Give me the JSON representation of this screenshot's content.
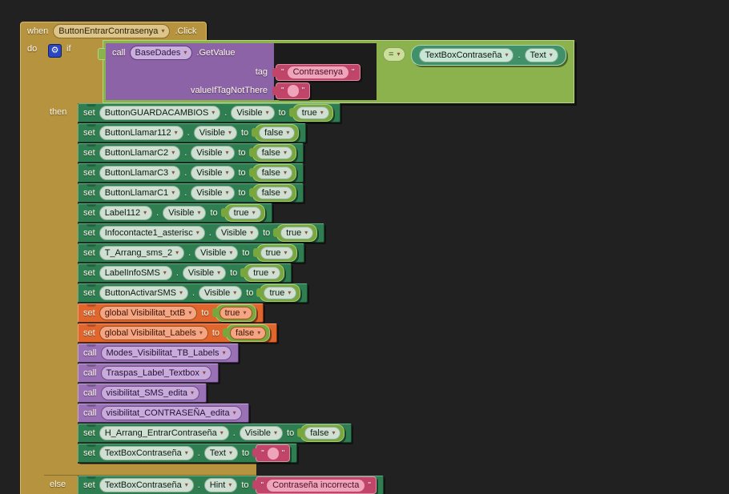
{
  "colors": {
    "canvas_background": "#212121",
    "control_gold": "#b6933e",
    "logic_green": "#8bb24c",
    "boolean_green": "#79a73e",
    "component_set_green": "#2f7e51",
    "component_get_teal": "#40906a",
    "text_pink": "#c14569",
    "variable_orange": "#e1662e",
    "procedure_purple": "#9b71b6",
    "call_method_purple": "#8d63a8",
    "mutator_blue": "#2a46c0"
  },
  "icons": {
    "dropdown_caret": "▾",
    "mutator_gear": "⚙"
  },
  "keywords": {
    "when": "when",
    "do": "do",
    "if": "if",
    "then": "then",
    "else": "else",
    "set": "set",
    "to": "to",
    "call": "call",
    "dot": ".",
    "quote": "\""
  },
  "when_block": {
    "component": "ButtonEntrarContrasenya",
    "event": ".Click"
  },
  "condition": {
    "operator": "=",
    "call_block": {
      "component": "BaseDades",
      "method": ".GetValue",
      "params": [
        {
          "label": "tag",
          "value": "Contrasenya",
          "value_type": "text"
        },
        {
          "label": "valueIfTagNotThere",
          "value": "",
          "value_type": "text-empty"
        }
      ]
    },
    "right_operand": {
      "component": "TextBoxContraseña",
      "property": "Text"
    }
  },
  "then_statements": [
    {
      "type": "set-property",
      "component": "ButtonGUARDACAMBIOS",
      "property": "Visible",
      "value_type": "bool",
      "value": "true"
    },
    {
      "type": "set-property",
      "component": "ButtonLlamar112",
      "property": "Visible",
      "value_type": "bool",
      "value": "false"
    },
    {
      "type": "set-property",
      "component": "ButtonLlamarC2",
      "property": "Visible",
      "value_type": "bool",
      "value": "false"
    },
    {
      "type": "set-property",
      "component": "ButtonLlamarC3",
      "property": "Visible",
      "value_type": "bool",
      "value": "false"
    },
    {
      "type": "set-property",
      "component": "ButtonLlamarC1",
      "property": "Visible",
      "value_type": "bool",
      "value": "false"
    },
    {
      "type": "set-property",
      "component": "Label112",
      "property": "Visible",
      "value_type": "bool",
      "value": "true"
    },
    {
      "type": "set-property",
      "component": "Infocontacte1_asterisc",
      "property": "Visible",
      "value_type": "bool",
      "value": "true"
    },
    {
      "type": "set-property",
      "component": "T_Arrang_sms_2",
      "property": "Visible",
      "value_type": "bool",
      "value": "true"
    },
    {
      "type": "set-property",
      "component": "LabelInfoSMS",
      "property": "Visible",
      "value_type": "bool",
      "value": "true"
    },
    {
      "type": "set-property",
      "component": "ButtonActivarSMS",
      "property": "Visible",
      "value_type": "bool",
      "value": "true"
    },
    {
      "type": "set-variable",
      "variable": "global Visibilitat_txtB",
      "value_type": "bool",
      "value": "true"
    },
    {
      "type": "set-variable",
      "variable": "global Visibilitat_Labels",
      "value_type": "bool",
      "value": "false"
    },
    {
      "type": "call-procedure",
      "name": "Modes_Visibilitat_TB_Labels"
    },
    {
      "type": "call-procedure",
      "name": "Traspas_Label_Textbox"
    },
    {
      "type": "call-procedure",
      "name": "visibilitat_SMS_edita"
    },
    {
      "type": "call-procedure",
      "name": "visibilitat_CONTRASEÑA_edita"
    },
    {
      "type": "set-property",
      "component": "H_Arrang_EntrarContraseña",
      "property": "Visible",
      "value_type": "bool",
      "value": "false"
    },
    {
      "type": "set-property",
      "component": "TextBoxContraseña",
      "property": "Text",
      "value_type": "text-empty",
      "value": ""
    }
  ],
  "else_statements": [
    {
      "type": "set-property",
      "component": "TextBoxContraseña",
      "property": "Hint",
      "value_type": "text",
      "value": "Contraseña incorrecta"
    }
  ]
}
